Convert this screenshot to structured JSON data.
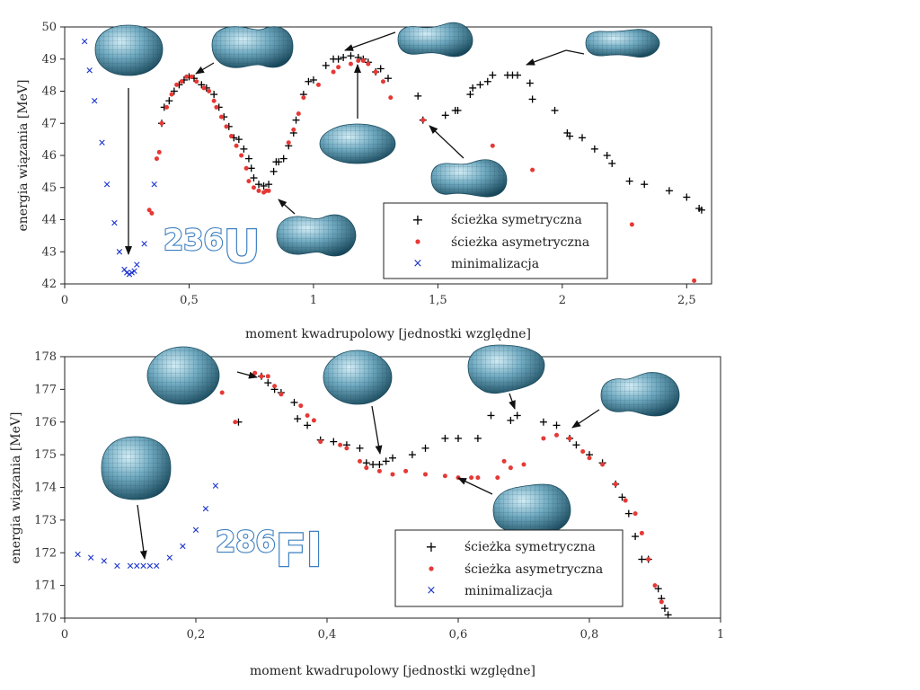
{
  "chart_data": [
    {
      "type": "scatter",
      "nucleus_mass": "236",
      "nucleus_symbol": "U",
      "xlabel": "moment kwadrupolowy [jednostki względne]",
      "ylabel": "energia wiązania [MeV]",
      "xlim": [
        0,
        2.6
      ],
      "ylim": [
        42,
        50
      ],
      "xticks": [
        "0",
        "0,5",
        "1",
        "1,5",
        "2",
        "2,5"
      ],
      "yticks": [
        "42",
        "43",
        "44",
        "45",
        "46",
        "47",
        "48",
        "49",
        "50"
      ],
      "legend": [
        "ścieżka symetryczna",
        "ścieżka asymetryczna",
        "minimalizacja"
      ],
      "legend_position": "lower-center",
      "series": [
        {
          "name": "ścieżka symetryczna",
          "marker": "plus",
          "color": "#000000",
          "points": [
            [
              0.39,
              47.0
            ],
            [
              0.4,
              47.5
            ],
            [
              0.42,
              47.7
            ],
            [
              0.44,
              48.0
            ],
            [
              0.46,
              48.2
            ],
            [
              0.48,
              48.35
            ],
            [
              0.5,
              48.45
            ],
            [
              0.52,
              48.4
            ],
            [
              0.55,
              48.2
            ],
            [
              0.57,
              48.1
            ],
            [
              0.6,
              47.9
            ],
            [
              0.62,
              47.5
            ],
            [
              0.64,
              47.2
            ],
            [
              0.66,
              46.9
            ],
            [
              0.68,
              46.55
            ],
            [
              0.7,
              46.5
            ],
            [
              0.72,
              46.2
            ],
            [
              0.74,
              45.9
            ],
            [
              0.75,
              45.6
            ],
            [
              0.76,
              45.3
            ],
            [
              0.78,
              45.1
            ],
            [
              0.8,
              45.05
            ],
            [
              0.82,
              45.1
            ],
            [
              0.84,
              45.5
            ],
            [
              0.85,
              45.8
            ],
            [
              0.86,
              45.8
            ],
            [
              0.88,
              45.9
            ],
            [
              0.9,
              46.3
            ],
            [
              0.92,
              46.7
            ],
            [
              0.93,
              47.1
            ],
            [
              0.96,
              47.9
            ],
            [
              0.98,
              48.3
            ],
            [
              1.0,
              48.35
            ],
            [
              1.05,
              48.8
            ],
            [
              1.08,
              49.0
            ],
            [
              1.1,
              49.0
            ],
            [
              1.12,
              49.05
            ],
            [
              1.15,
              49.1
            ],
            [
              1.18,
              49.05
            ],
            [
              1.2,
              49.0
            ],
            [
              1.22,
              48.9
            ],
            [
              1.25,
              48.6
            ],
            [
              1.27,
              48.7
            ],
            [
              1.3,
              48.4
            ],
            [
              1.42,
              47.85
            ],
            [
              1.44,
              47.1
            ],
            [
              1.53,
              47.25
            ],
            [
              1.57,
              47.4
            ],
            [
              1.58,
              47.4
            ],
            [
              1.63,
              47.9
            ],
            [
              1.64,
              48.1
            ],
            [
              1.67,
              48.2
            ],
            [
              1.7,
              48.3
            ],
            [
              1.72,
              48.5
            ],
            [
              1.78,
              48.5
            ],
            [
              1.8,
              48.5
            ],
            [
              1.82,
              48.5
            ],
            [
              1.87,
              48.25
            ],
            [
              1.88,
              47.75
            ],
            [
              1.97,
              47.4
            ],
            [
              2.02,
              46.7
            ],
            [
              2.03,
              46.6
            ],
            [
              2.08,
              46.55
            ],
            [
              2.13,
              46.2
            ],
            [
              2.18,
              46.0
            ],
            [
              2.2,
              45.75
            ],
            [
              2.27,
              45.2
            ],
            [
              2.33,
              45.1
            ],
            [
              2.43,
              44.9
            ],
            [
              2.5,
              44.7
            ],
            [
              2.55,
              44.35
            ],
            [
              2.56,
              44.3
            ]
          ]
        },
        {
          "name": "ścieżka asymetryczna",
          "marker": "dot",
          "color": "#e53935",
          "points": [
            [
              0.34,
              44.3
            ],
            [
              0.35,
              44.2
            ],
            [
              0.37,
              45.9
            ],
            [
              0.38,
              46.1
            ],
            [
              0.39,
              47.0
            ],
            [
              0.41,
              47.5
            ],
            [
              0.43,
              47.9
            ],
            [
              0.45,
              48.2
            ],
            [
              0.47,
              48.3
            ],
            [
              0.49,
              48.45
            ],
            [
              0.51,
              48.45
            ],
            [
              0.53,
              48.3
            ],
            [
              0.56,
              48.1
            ],
            [
              0.58,
              48.0
            ],
            [
              0.6,
              47.7
            ],
            [
              0.61,
              47.5
            ],
            [
              0.63,
              47.2
            ],
            [
              0.65,
              46.9
            ],
            [
              0.67,
              46.6
            ],
            [
              0.69,
              46.3
            ],
            [
              0.71,
              46.0
            ],
            [
              0.73,
              45.6
            ],
            [
              0.74,
              45.2
            ],
            [
              0.76,
              45.0
            ],
            [
              0.78,
              44.9
            ],
            [
              0.8,
              44.85
            ],
            [
              0.81,
              44.9
            ],
            [
              0.82,
              44.9
            ],
            [
              0.9,
              46.4
            ],
            [
              0.92,
              46.8
            ],
            [
              0.94,
              47.3
            ],
            [
              0.96,
              47.8
            ],
            [
              1.02,
              48.2
            ],
            [
              1.08,
              48.6
            ],
            [
              1.1,
              48.75
            ],
            [
              1.15,
              48.85
            ],
            [
              1.18,
              48.95
            ],
            [
              1.2,
              48.95
            ],
            [
              1.22,
              48.85
            ],
            [
              1.25,
              48.6
            ],
            [
              1.28,
              48.3
            ],
            [
              1.31,
              47.8
            ],
            [
              1.44,
              47.1
            ],
            [
              1.72,
              46.3
            ],
            [
              1.88,
              45.55
            ],
            [
              2.28,
              43.85
            ],
            [
              2.53,
              42.1
            ]
          ]
        },
        {
          "name": "minimalizacja",
          "marker": "cross",
          "color": "#1a33cc",
          "points": [
            [
              0.08,
              49.55
            ],
            [
              0.1,
              48.65
            ],
            [
              0.12,
              47.7
            ],
            [
              0.15,
              46.4
            ],
            [
              0.17,
              45.1
            ],
            [
              0.2,
              43.9
            ],
            [
              0.22,
              43.0
            ],
            [
              0.24,
              42.45
            ],
            [
              0.25,
              42.35
            ],
            [
              0.26,
              42.3
            ],
            [
              0.27,
              42.35
            ],
            [
              0.28,
              42.4
            ],
            [
              0.29,
              42.6
            ],
            [
              0.32,
              43.25
            ],
            [
              0.36,
              45.1
            ]
          ]
        }
      ]
    },
    {
      "type": "scatter",
      "nucleus_mass": "286",
      "nucleus_symbol": "Fl",
      "xlabel": "moment kwadrupolowy [jednostki względne]",
      "ylabel": "energia wiązania [MeV]",
      "xlim": [
        0,
        1
      ],
      "ylim": [
        170,
        178
      ],
      "xticks": [
        "0",
        "0,2",
        "0,4",
        "0,6",
        "0,8",
        "1"
      ],
      "yticks": [
        "170",
        "171",
        "172",
        "173",
        "174",
        "175",
        "176",
        "177",
        "178"
      ],
      "legend": [
        "ścieżka symetryczna",
        "ścieżka asymetryczna",
        "minimalizacja"
      ],
      "legend_position": "lower-center",
      "series": [
        {
          "name": "ścieżka symetryczna",
          "marker": "plus",
          "color": "#000000",
          "points": [
            [
              0.265,
              176.0
            ],
            [
              0.3,
              177.4
            ],
            [
              0.31,
              177.2
            ],
            [
              0.32,
              177.0
            ],
            [
              0.33,
              176.9
            ],
            [
              0.35,
              176.6
            ],
            [
              0.355,
              176.1
            ],
            [
              0.37,
              175.9
            ],
            [
              0.39,
              175.45
            ],
            [
              0.41,
              175.4
            ],
            [
              0.43,
              175.3
            ],
            [
              0.45,
              175.2
            ],
            [
              0.46,
              174.75
            ],
            [
              0.47,
              174.7
            ],
            [
              0.48,
              174.7
            ],
            [
              0.49,
              174.8
            ],
            [
              0.5,
              174.9
            ],
            [
              0.53,
              175.0
            ],
            [
              0.55,
              175.2
            ],
            [
              0.58,
              175.5
            ],
            [
              0.6,
              175.5
            ],
            [
              0.63,
              175.5
            ],
            [
              0.65,
              176.2
            ],
            [
              0.68,
              176.05
            ],
            [
              0.69,
              176.2
            ],
            [
              0.73,
              176.0
            ],
            [
              0.75,
              175.9
            ],
            [
              0.77,
              175.5
            ],
            [
              0.78,
              175.3
            ],
            [
              0.8,
              175.0
            ],
            [
              0.82,
              174.75
            ],
            [
              0.84,
              174.1
            ],
            [
              0.85,
              173.7
            ],
            [
              0.86,
              173.2
            ],
            [
              0.87,
              172.5
            ],
            [
              0.88,
              171.8
            ],
            [
              0.89,
              171.8
            ],
            [
              0.905,
              170.9
            ],
            [
              0.91,
              170.6
            ],
            [
              0.915,
              170.3
            ],
            [
              0.92,
              170.1
            ]
          ]
        },
        {
          "name": "ścieżka asymetryczna",
          "marker": "dot",
          "color": "#e53935",
          "points": [
            [
              0.24,
              176.9
            ],
            [
              0.26,
              176.0
            ],
            [
              0.29,
              177.5
            ],
            [
              0.3,
              177.4
            ],
            [
              0.31,
              177.4
            ],
            [
              0.32,
              177.1
            ],
            [
              0.33,
              176.85
            ],
            [
              0.36,
              176.5
            ],
            [
              0.37,
              176.2
            ],
            [
              0.38,
              176.05
            ],
            [
              0.39,
              175.4
            ],
            [
              0.42,
              175.3
            ],
            [
              0.43,
              175.2
            ],
            [
              0.45,
              174.8
            ],
            [
              0.46,
              174.6
            ],
            [
              0.48,
              174.5
            ],
            [
              0.5,
              174.4
            ],
            [
              0.52,
              174.5
            ],
            [
              0.55,
              174.4
            ],
            [
              0.58,
              174.35
            ],
            [
              0.6,
              174.3
            ],
            [
              0.62,
              174.3
            ],
            [
              0.63,
              174.3
            ],
            [
              0.66,
              174.3
            ],
            [
              0.67,
              174.8
            ],
            [
              0.68,
              174.6
            ],
            [
              0.7,
              174.7
            ],
            [
              0.73,
              175.5
            ],
            [
              0.75,
              175.6
            ],
            [
              0.77,
              175.5
            ],
            [
              0.79,
              175.1
            ],
            [
              0.8,
              174.9
            ],
            [
              0.82,
              174.7
            ],
            [
              0.84,
              174.1
            ],
            [
              0.855,
              173.6
            ],
            [
              0.87,
              173.2
            ],
            [
              0.88,
              172.6
            ],
            [
              0.89,
              171.8
            ],
            [
              0.9,
              171.0
            ],
            [
              0.91,
              170.5
            ]
          ]
        },
        {
          "name": "minimalizacja",
          "marker": "cross",
          "color": "#1a33cc",
          "points": [
            [
              0.02,
              171.95
            ],
            [
              0.04,
              171.85
            ],
            [
              0.06,
              171.75
            ],
            [
              0.08,
              171.6
            ],
            [
              0.1,
              171.6
            ],
            [
              0.11,
              171.6
            ],
            [
              0.12,
              171.6
            ],
            [
              0.13,
              171.6
            ],
            [
              0.14,
              171.6
            ],
            [
              0.16,
              171.85
            ],
            [
              0.18,
              172.2
            ],
            [
              0.2,
              172.7
            ],
            [
              0.215,
              173.35
            ],
            [
              0.23,
              174.05
            ]
          ]
        }
      ]
    }
  ],
  "colors": {
    "shape_fill": "#3d7a94",
    "shape_light": "#b8dcea",
    "shape_mesh": "#1c4b5e",
    "nucleus_text_stroke": "#3d7fbf"
  }
}
